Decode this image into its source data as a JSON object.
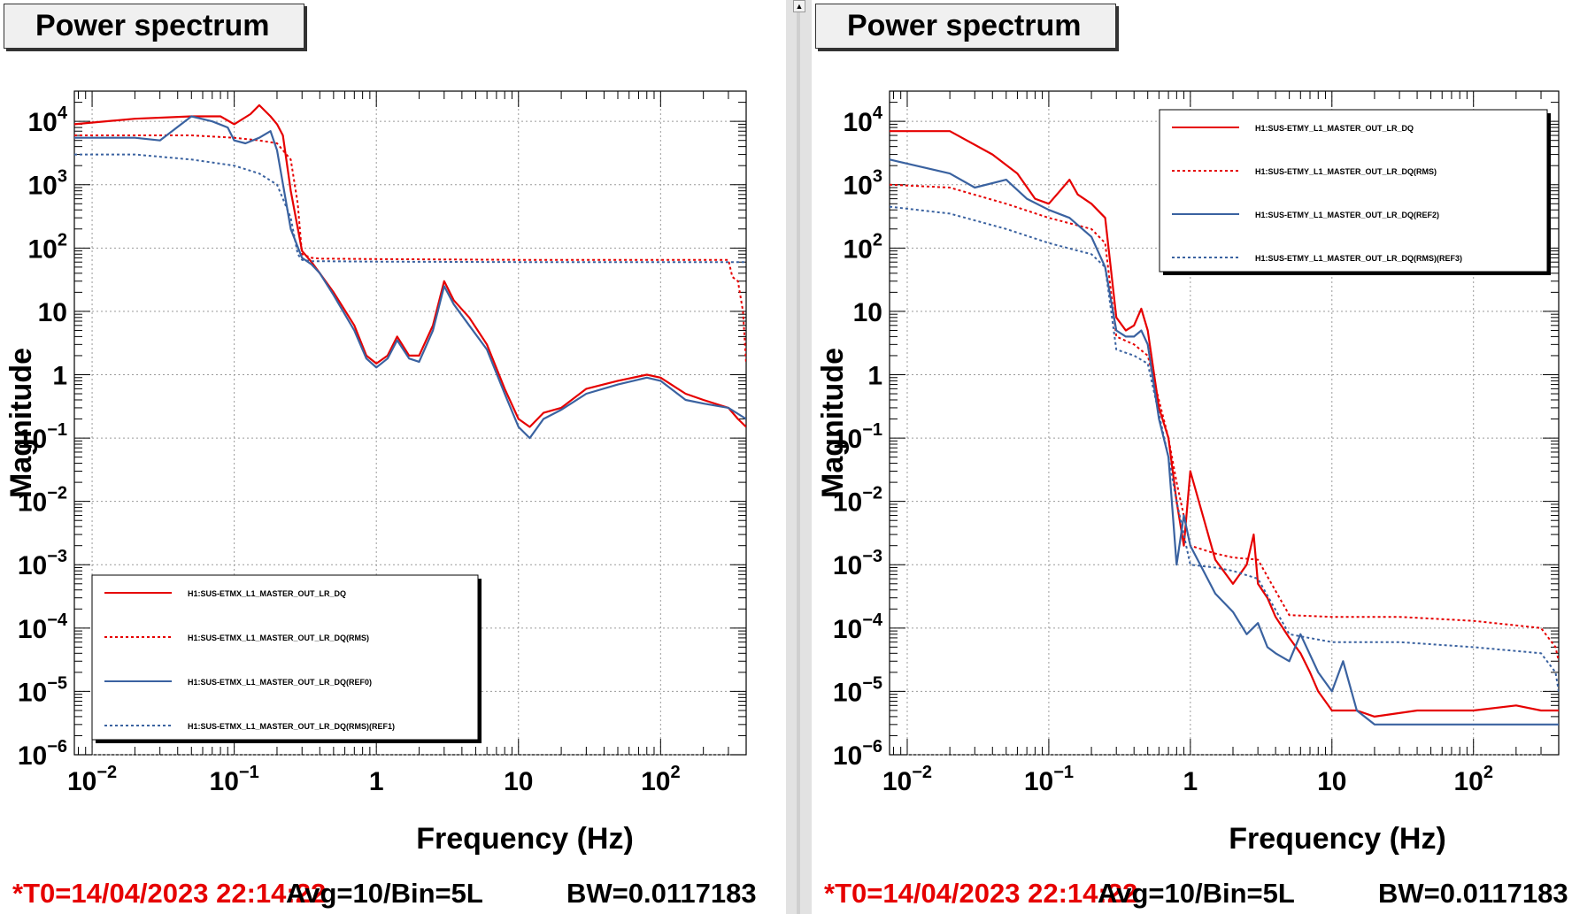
{
  "panels": [
    {
      "title": "Power spectrum",
      "footer": {
        "t0": "*T0=14/04/2023 22:14:22",
        "avg": "Avg=10/Bin=5L",
        "bw": "BW=0.0117183"
      },
      "chart_data": {
        "type": "line",
        "title": "Power spectrum",
        "xlabel": "Frequency (Hz)",
        "ylabel": "Magnitude",
        "xscale": "log",
        "yscale": "log",
        "xlim": [
          0.0075,
          400
        ],
        "ylim": [
          1e-06,
          30000
        ],
        "grid": true,
        "legend_position": "bottom-left",
        "x_ticks": [
          {
            "value": 0.01,
            "base": "10",
            "exp": "−2"
          },
          {
            "value": 0.1,
            "base": "10",
            "exp": "−1"
          },
          {
            "value": 1,
            "base": "1",
            "exp": ""
          },
          {
            "value": 10,
            "base": "10",
            "exp": ""
          },
          {
            "value": 100,
            "base": "10",
            "exp": "2"
          }
        ],
        "y_ticks": [
          {
            "value": 1e-06,
            "base": "10",
            "exp": "−6"
          },
          {
            "value": 1e-05,
            "base": "10",
            "exp": "−5"
          },
          {
            "value": 0.0001,
            "base": "10",
            "exp": "−4"
          },
          {
            "value": 0.001,
            "base": "10",
            "exp": "−3"
          },
          {
            "value": 0.01,
            "base": "10",
            "exp": "−2"
          },
          {
            "value": 0.1,
            "base": "10",
            "exp": "−1"
          },
          {
            "value": 1,
            "base": "1",
            "exp": ""
          },
          {
            "value": 10,
            "base": "10",
            "exp": ""
          },
          {
            "value": 100,
            "base": "10",
            "exp": "2"
          },
          {
            "value": 1000,
            "base": "10",
            "exp": "3"
          },
          {
            "value": 10000,
            "base": "10",
            "exp": "4"
          }
        ],
        "series": [
          {
            "name": "H1:SUS-ETMX_L1_MASTER_OUT_LR_DQ",
            "color": "#e60000",
            "dash": "solid",
            "x": [
              0.0075,
              0.02,
              0.05,
              0.08,
              0.1,
              0.13,
              0.15,
              0.18,
              0.2,
              0.22,
              0.25,
              0.3,
              0.35,
              0.4,
              0.5,
              0.7,
              0.85,
              1,
              1.2,
              1.4,
              1.7,
              2,
              2.5,
              3,
              3.5,
              4.5,
              6,
              8,
              10,
              12,
              15,
              20,
              30,
              50,
              80,
              100,
              150,
              200,
              300,
              350,
              400
            ],
            "y": [
              9000,
              11000,
              12000,
              12000,
              9000,
              13000,
              18000,
              12000,
              9000,
              6000,
              800,
              90,
              60,
              40,
              20,
              6,
              2,
              1.5,
              2,
              4,
              2,
              2,
              6,
              30,
              15,
              8,
              3,
              0.6,
              0.2,
              0.15,
              0.25,
              0.3,
              0.6,
              0.8,
              1.0,
              0.9,
              0.5,
              0.4,
              0.3,
              0.2,
              0.15
            ]
          },
          {
            "name": "H1:SUS-ETMX_L1_MASTER_OUT_LR_DQ(RMS)",
            "color": "#e60000",
            "dash": "dotted",
            "x": [
              0.0075,
              0.02,
              0.05,
              0.1,
              0.15,
              0.2,
              0.25,
              0.28,
              0.3,
              0.35,
              0.4,
              1,
              10,
              100,
              300,
              320,
              350,
              380,
              400
            ],
            "y": [
              6000,
              6000,
              6000,
              5500,
              5000,
              4500,
              2500,
              500,
              80,
              70,
              68,
              67,
              65,
              65,
              65,
              35,
              30,
              10,
              1.5
            ]
          },
          {
            "name": "H1:SUS-ETMX_L1_MASTER_OUT_LR_DQ(REF0)",
            "color": "#3a62a0",
            "dash": "solid",
            "x": [
              0.0075,
              0.02,
              0.03,
              0.05,
              0.07,
              0.09,
              0.1,
              0.12,
              0.15,
              0.18,
              0.2,
              0.25,
              0.3,
              0.35,
              0.4,
              0.5,
              0.7,
              0.85,
              1,
              1.2,
              1.4,
              1.7,
              2,
              2.5,
              3,
              3.5,
              4.5,
              6,
              8,
              10,
              12,
              15,
              20,
              30,
              50,
              80,
              100,
              150,
              200,
              300,
              400
            ],
            "y": [
              5500,
              5500,
              5000,
              12000,
              10000,
              8000,
              5000,
              4500,
              5500,
              7000,
              3500,
              200,
              70,
              55,
              40,
              18,
              5,
              1.8,
              1.3,
              1.8,
              3.5,
              1.8,
              1.6,
              5,
              25,
              13,
              6,
              2.5,
              0.5,
              0.15,
              0.1,
              0.2,
              0.28,
              0.5,
              0.7,
              0.9,
              0.8,
              0.4,
              0.35,
              0.3,
              0.2
            ]
          },
          {
            "name": "H1:SUS-ETMX_L1_MASTER_OUT_LR_DQ(RMS)(REF1)",
            "color": "#3a62a0",
            "dash": "dotted",
            "x": [
              0.0075,
              0.02,
              0.05,
              0.1,
              0.15,
              0.2,
              0.25,
              0.28,
              0.3,
              0.35,
              0.4,
              1,
              10,
              100,
              300,
              400
            ],
            "y": [
              3000,
              3000,
              2500,
              2000,
              1500,
              1000,
              300,
              80,
              65,
              62,
              62,
              61,
              60,
              60,
              60,
              60
            ]
          }
        ]
      }
    },
    {
      "title": "Power spectrum",
      "footer": {
        "t0": "*T0=14/04/2023 22:14:22",
        "avg": "Avg=10/Bin=5L",
        "bw": "BW=0.0117183"
      },
      "chart_data": {
        "type": "line",
        "title": "Power spectrum",
        "xlabel": "Frequency (Hz)",
        "ylabel": "Magnitude",
        "xscale": "log",
        "yscale": "log",
        "xlim": [
          0.0075,
          400
        ],
        "ylim": [
          1e-06,
          30000
        ],
        "grid": true,
        "legend_position": "top-right",
        "x_ticks": [
          {
            "value": 0.01,
            "base": "10",
            "exp": "−2"
          },
          {
            "value": 0.1,
            "base": "10",
            "exp": "−1"
          },
          {
            "value": 1,
            "base": "1",
            "exp": ""
          },
          {
            "value": 10,
            "base": "10",
            "exp": ""
          },
          {
            "value": 100,
            "base": "10",
            "exp": "2"
          }
        ],
        "y_ticks": [
          {
            "value": 1e-06,
            "base": "10",
            "exp": "−6"
          },
          {
            "value": 1e-05,
            "base": "10",
            "exp": "−5"
          },
          {
            "value": 0.0001,
            "base": "10",
            "exp": "−4"
          },
          {
            "value": 0.001,
            "base": "10",
            "exp": "−3"
          },
          {
            "value": 0.01,
            "base": "10",
            "exp": "−2"
          },
          {
            "value": 0.1,
            "base": "10",
            "exp": "−1"
          },
          {
            "value": 1,
            "base": "1",
            "exp": ""
          },
          {
            "value": 10,
            "base": "10",
            "exp": ""
          },
          {
            "value": 100,
            "base": "10",
            "exp": "2"
          },
          {
            "value": 1000,
            "base": "10",
            "exp": "3"
          },
          {
            "value": 10000,
            "base": "10",
            "exp": "4"
          }
        ],
        "series": [
          {
            "name": "H1:SUS-ETMY_L1_MASTER_OUT_LR_DQ",
            "color": "#e60000",
            "dash": "solid",
            "x": [
              0.0075,
              0.02,
              0.04,
              0.06,
              0.08,
              0.1,
              0.12,
              0.14,
              0.16,
              0.2,
              0.25,
              0.3,
              0.35,
              0.4,
              0.45,
              0.5,
              0.6,
              0.7,
              0.8,
              0.9,
              1,
              1.5,
              2,
              2.5,
              2.8,
              3,
              3.5,
              4,
              5,
              6,
              7,
              8,
              10,
              15,
              20,
              40,
              100,
              200,
              300,
              400
            ],
            "y": [
              7000,
              7000,
              3000,
              1500,
              600,
              500,
              800,
              1200,
              700,
              500,
              300,
              8,
              5,
              6,
              11,
              5,
              0.3,
              0.1,
              0.01,
              0.002,
              0.03,
              0.0012,
              0.0005,
              0.001,
              0.003,
              0.0005,
              0.0003,
              0.00015,
              7e-05,
              4e-05,
              2e-05,
              1e-05,
              5e-06,
              5e-06,
              4e-06,
              5e-06,
              5e-06,
              6e-06,
              5e-06,
              5e-06
            ]
          },
          {
            "name": "H1:SUS-ETMY_L1_MASTER_OUT_LR_DQ(RMS)",
            "color": "#e60000",
            "dash": "dotted",
            "x": [
              0.0075,
              0.02,
              0.05,
              0.1,
              0.2,
              0.25,
              0.3,
              0.4,
              0.5,
              0.7,
              0.8,
              1,
              1.5,
              2,
              3,
              5,
              10,
              30,
              100,
              300,
              380,
              400
            ],
            "y": [
              1000,
              900,
              500,
              300,
              200,
              120,
              4,
              3,
              2,
              0.1,
              0.02,
              0.002,
              0.0015,
              0.0013,
              0.0012,
              0.00016,
              0.00015,
              0.00015,
              0.00013,
              0.0001,
              5e-05,
              3e-05
            ]
          },
          {
            "name": "H1:SUS-ETMY_L1_MASTER_OUT_LR_DQ(REF2)",
            "color": "#3a62a0",
            "dash": "solid",
            "x": [
              0.0075,
              0.02,
              0.03,
              0.05,
              0.07,
              0.1,
              0.14,
              0.2,
              0.25,
              0.3,
              0.35,
              0.4,
              0.45,
              0.5,
              0.6,
              0.7,
              0.8,
              0.9,
              1,
              1.5,
              2,
              2.5,
              3,
              3.5,
              4,
              5,
              6,
              8,
              10,
              12,
              15,
              20,
              40,
              100,
              200,
              400
            ],
            "y": [
              2500,
              1500,
              900,
              1200,
              600,
              400,
              300,
              150,
              50,
              5,
              4,
              4,
              5,
              3,
              0.2,
              0.05,
              0.001,
              0.006,
              0.002,
              0.00035,
              0.00018,
              8e-05,
              0.00012,
              5e-05,
              4e-05,
              3e-05,
              8e-05,
              2e-05,
              1e-05,
              3e-05,
              5e-06,
              3e-06,
              3e-06,
              3e-06,
              3e-06,
              3e-06
            ]
          },
          {
            "name": "H1:SUS-ETMY_L1_MASTER_OUT_LR_DQ(RMS)(REF3)",
            "color": "#3a62a0",
            "dash": "dotted",
            "x": [
              0.0075,
              0.02,
              0.05,
              0.1,
              0.2,
              0.25,
              0.3,
              0.4,
              0.5,
              0.7,
              0.8,
              1,
              1.5,
              2,
              3,
              5,
              10,
              30,
              100,
              300,
              380,
              400
            ],
            "y": [
              450,
              350,
              200,
              120,
              80,
              50,
              2.5,
              2,
              1.5,
              0.05,
              0.01,
              0.001,
              0.0009,
              0.0008,
              0.0006,
              8e-05,
              6e-05,
              6e-05,
              5e-05,
              4e-05,
              2e-05,
              1e-05
            ]
          }
        ]
      }
    }
  ]
}
